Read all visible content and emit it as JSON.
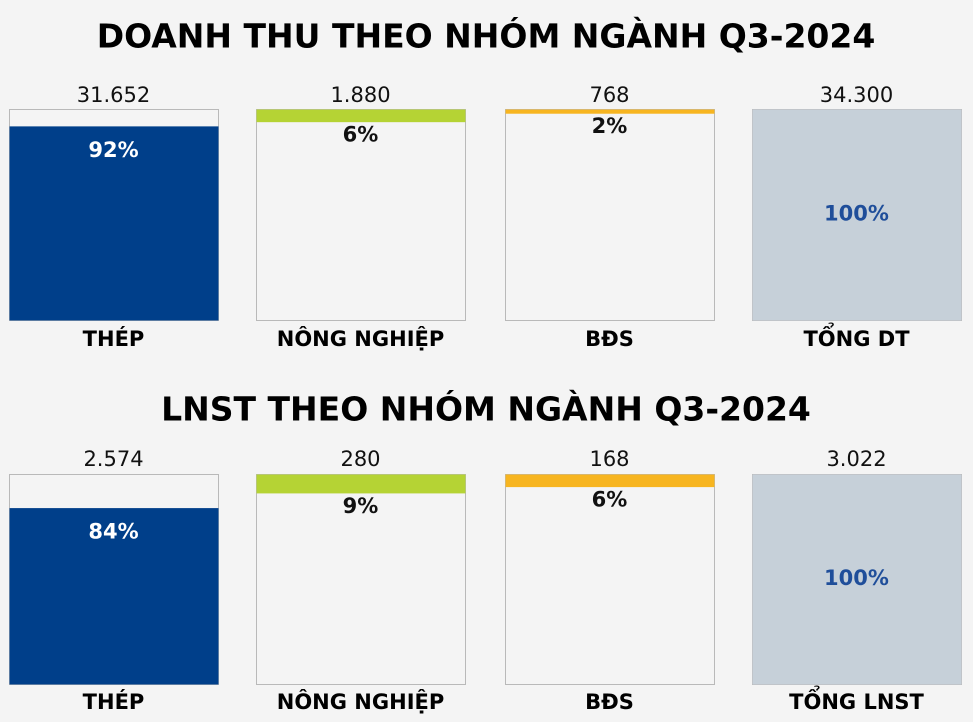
{
  "chart_data": [
    {
      "type": "bar",
      "title": "DOANH THU THEO NHÓM NGÀNH Q3-2024",
      "categories": [
        "THÉP",
        "NÔNG NGHIỆP",
        "BĐS",
        "TỔNG DT"
      ],
      "values": [
        31652,
        1880,
        768,
        34300
      ],
      "value_labels": [
        "31.652",
        "1.880",
        "768",
        "34.300"
      ],
      "shares": [
        92,
        6,
        2,
        100
      ],
      "share_labels": [
        "92%",
        "6%",
        "2%",
        "100%"
      ],
      "colors": [
        "#003f8a",
        "#b5d334",
        "#f7b520",
        "#c6d0d9"
      ]
    },
    {
      "type": "bar",
      "title": "LNST THEO NHÓM NGÀNH Q3-2024",
      "categories": [
        "THÉP",
        "NÔNG NGHIỆP",
        "BĐS",
        "TỔNG LNST"
      ],
      "values": [
        2574,
        280,
        168,
        3022
      ],
      "value_labels": [
        "2.574",
        "280",
        "168",
        "3.022"
      ],
      "shares": [
        84,
        9,
        6,
        100
      ],
      "share_labels": [
        "84%",
        "9%",
        "6%",
        "100%"
      ],
      "colors": [
        "#003f8a",
        "#b5d334",
        "#f7b520",
        "#c6d0d9"
      ]
    }
  ]
}
